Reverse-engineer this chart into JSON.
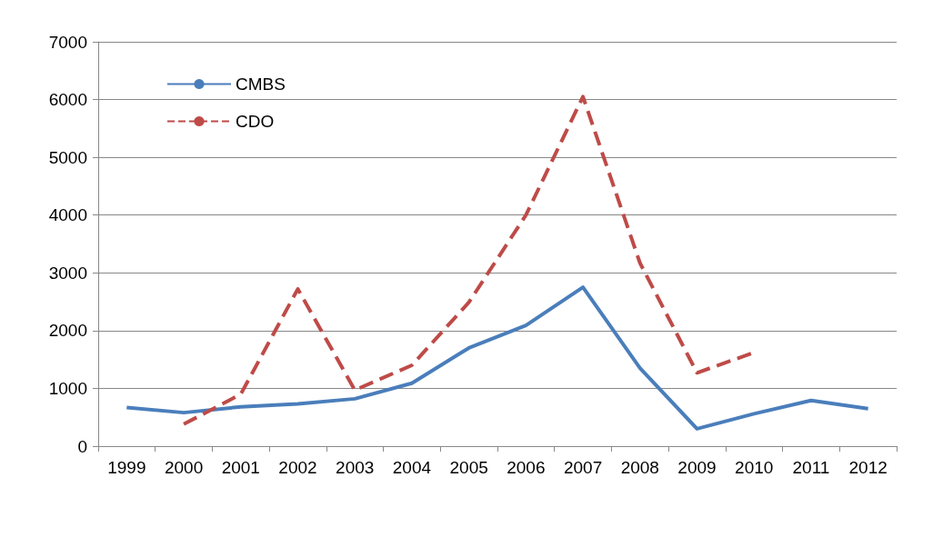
{
  "chart_data": {
    "type": "line",
    "categories": [
      "1999",
      "2000",
      "2001",
      "2002",
      "2003",
      "2004",
      "2005",
      "2006",
      "2007",
      "2008",
      "2009",
      "2010",
      "2011",
      "2012"
    ],
    "series": [
      {
        "name": "CMBS",
        "color": "#4a7ebb",
        "line_style": "solid",
        "values": [
          670,
          580,
          680,
          730,
          820,
          1090,
          1700,
          2090,
          2750,
          1350,
          300,
          560,
          790,
          650
        ]
      },
      {
        "name": "CDO",
        "color": "#be4b48",
        "line_style": "dashed",
        "values": [
          null,
          380,
          900,
          2720,
          970,
          1400,
          2490,
          4000,
          6050,
          3170,
          1270,
          1620,
          null,
          null
        ]
      }
    ],
    "ylim": [
      0,
      7000
    ],
    "yticks": [
      0,
      1000,
      2000,
      3000,
      4000,
      5000,
      6000,
      7000
    ],
    "grid": "y",
    "legend": "top left",
    "marker": "none"
  }
}
